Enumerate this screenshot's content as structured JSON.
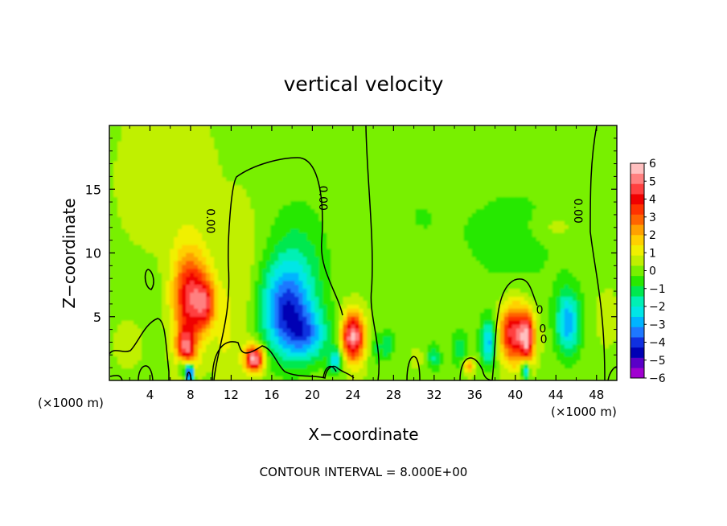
{
  "chart_data": {
    "type": "heatmap",
    "title": "vertical velocity",
    "xlabel": "X−coordinate",
    "ylabel": "Z−coordinate",
    "x_unit_left": "(×1000 m)",
    "x_unit_right": "(×1000 m)",
    "footer": "CONTOUR INTERVAL = 8.000E+00",
    "xlim": [
      0,
      50
    ],
    "ylim": [
      0,
      20
    ],
    "x_ticks": [
      4,
      8,
      12,
      16,
      20,
      24,
      28,
      32,
      36,
      40,
      44,
      48
    ],
    "x_tick_labels": [
      "4",
      "8",
      "12",
      "16",
      "20",
      "24",
      "28",
      "32",
      "36",
      "40",
      "44",
      "48"
    ],
    "y_ticks": [
      5,
      10,
      15
    ],
    "y_tick_labels": [
      "5",
      "10",
      "15"
    ],
    "colorbar": {
      "min": -6,
      "max": 6,
      "labels": [
        "6",
        "5",
        "4",
        "3",
        "2",
        "1",
        "0",
        "−1",
        "−2",
        "−3",
        "−4",
        "−5",
        "−6"
      ],
      "colors": [
        "#a000d0",
        "#5a00c8",
        "#0000b4",
        "#1030e0",
        "#1e78ff",
        "#00b4ff",
        "#00e6e6",
        "#00f0b4",
        "#00e850",
        "#28e800",
        "#78f000",
        "#c0f000",
        "#f0f000",
        "#ffd000",
        "#ffa000",
        "#ff6400",
        "#ff3200",
        "#f00000",
        "#ff4040",
        "#ff8080",
        "#ffc0c0"
      ]
    },
    "contour_labels": [
      {
        "text": "0.00",
        "x": 9.9,
        "z": 12.5,
        "rotate": 90
      },
      {
        "text": "0.00",
        "x": 21.0,
        "z": 14.3,
        "rotate": 90
      },
      {
        "text": "0.00",
        "x": 46.1,
        "z": 13.3,
        "rotate": 90
      },
      {
        "text": "0",
        "x": 42.4,
        "z": 5.5,
        "rotate": 0
      },
      {
        "text": "0",
        "x": 42.7,
        "z": 4.0,
        "rotate": 0
      },
      {
        "text": "0",
        "x": 42.8,
        "z": 3.2,
        "rotate": 0
      }
    ],
    "features": [
      {
        "x": 6.0,
        "z": 6.5,
        "w": -0.3,
        "sx": 4.6,
        "sz": 4.6
      },
      {
        "x": 5.6,
        "z": 15.5,
        "w": 0.7,
        "sx": 4.0,
        "sz": 6.0
      },
      {
        "x": 8.0,
        "z": 6.5,
        "w": 4.6,
        "sx": 1.8,
        "sz": 3.6
      },
      {
        "x": 9.5,
        "z": 6.0,
        "w": 2.6,
        "sx": 1.0,
        "sz": 1.8
      },
      {
        "x": 7.5,
        "z": 2.2,
        "w": 4.2,
        "sx": 0.9,
        "sz": 1.8
      },
      {
        "x": 7.9,
        "z": 0.6,
        "w": -6.5,
        "sx": 0.4,
        "sz": 0.8
      },
      {
        "x": 7.2,
        "z": 1.2,
        "w": -3.0,
        "sx": 0.5,
        "sz": 0.9
      },
      {
        "x": 13.0,
        "z": 7.0,
        "w": 0.8,
        "sx": 2.2,
        "sz": 6.0
      },
      {
        "x": 14.3,
        "z": 1.7,
        "w": 5.6,
        "sx": 0.9,
        "sz": 1.0
      },
      {
        "x": 11.3,
        "z": 3.5,
        "w": 0.6,
        "sx": 0.8,
        "sz": 3.0
      },
      {
        "x": 17.3,
        "z": 5.5,
        "w": -3.6,
        "sx": 2.6,
        "sz": 3.5
      },
      {
        "x": 19.5,
        "z": 3.5,
        "w": -2.4,
        "sx": 2.2,
        "sz": 2.0
      },
      {
        "x": 18.5,
        "z": 9.0,
        "w": -1.2,
        "sx": 3.0,
        "sz": 5.0
      },
      {
        "x": 24.0,
        "z": 3.4,
        "w": 5.5,
        "sx": 1.1,
        "sz": 1.9
      },
      {
        "x": 22.3,
        "z": 1.5,
        "w": -2.5,
        "sx": 0.7,
        "sz": 1.0
      },
      {
        "x": 26.3,
        "z": 2.5,
        "w": -1.0,
        "sx": 0.6,
        "sz": 1.2
      },
      {
        "x": 27.4,
        "z": 2.8,
        "w": -1.6,
        "sx": 0.6,
        "sz": 1.2
      },
      {
        "x": 30.3,
        "z": 1.8,
        "w": 0.7,
        "sx": 0.5,
        "sz": 0.7
      },
      {
        "x": 32.0,
        "z": 1.8,
        "w": -1.6,
        "sx": 0.7,
        "sz": 1.0
      },
      {
        "x": 34.5,
        "z": 2.5,
        "w": -1.3,
        "sx": 0.8,
        "sz": 1.4
      },
      {
        "x": 35.4,
        "z": 1.1,
        "w": 2.4,
        "sx": 0.5,
        "sz": 0.6
      },
      {
        "x": 37.4,
        "z": 3.0,
        "w": -3.1,
        "sx": 0.8,
        "sz": 1.8
      },
      {
        "x": 40.0,
        "z": 3.7,
        "w": 4.8,
        "sx": 1.6,
        "sz": 2.3
      },
      {
        "x": 41.2,
        "z": 3.2,
        "w": 3.4,
        "sx": 0.6,
        "sz": 1.7
      },
      {
        "x": 41.0,
        "z": 0.8,
        "w": -3.5,
        "sx": 0.4,
        "sz": 0.7
      },
      {
        "x": 45.2,
        "z": 4.5,
        "w": -3.1,
        "sx": 1.2,
        "sz": 2.5
      },
      {
        "x": 40.0,
        "z": 11.0,
        "w": -0.6,
        "sx": 6.0,
        "sz": 6.0
      },
      {
        "x": 30.0,
        "z": 13.0,
        "w": -0.4,
        "sx": 5.0,
        "sz": 6.0
      },
      {
        "x": 44.0,
        "z": 12.0,
        "w": 0.6,
        "sx": 2.0,
        "sz": 1.0
      },
      {
        "x": 49.0,
        "z": 5.0,
        "w": 0.6,
        "sx": 1.0,
        "sz": 2.0
      },
      {
        "x": 2.0,
        "z": 3.0,
        "w": 0.5,
        "sx": 1.5,
        "sz": 2.0
      }
    ]
  }
}
